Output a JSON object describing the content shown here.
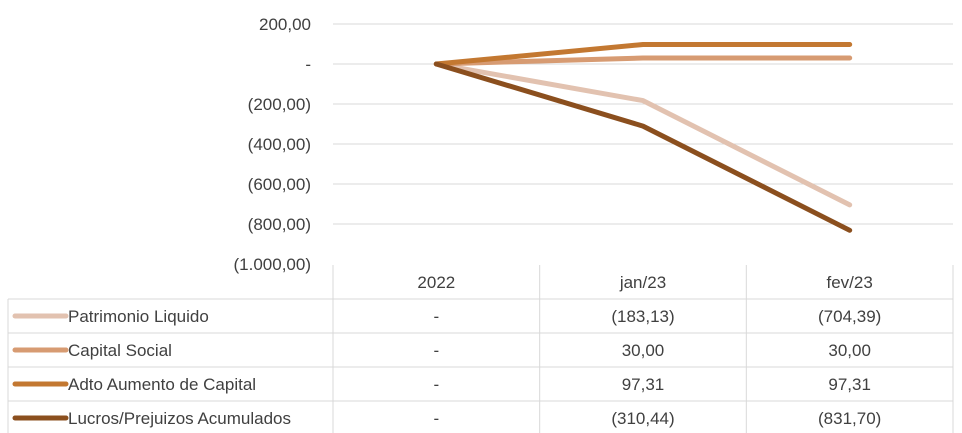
{
  "chart_data": {
    "type": "line",
    "title": "",
    "xlabel": "",
    "ylabel": "",
    "ylim": [
      -1000,
      200
    ],
    "y_ticks": [
      {
        "value": 200,
        "label": "200,00"
      },
      {
        "value": 0,
        "label": "-"
      },
      {
        "value": -200,
        "label": "(200,00)"
      },
      {
        "value": -400,
        "label": "(400,00)"
      },
      {
        "value": -600,
        "label": "(600,00)"
      },
      {
        "value": -800,
        "label": "(800,00)"
      },
      {
        "value": -1000,
        "label": "(1.000,00)"
      }
    ],
    "grid": true,
    "legend": "data-table",
    "categories": [
      "2022",
      "jan/23",
      "fev/23"
    ],
    "series": [
      {
        "name": "Patrimonio Liquido",
        "color": "#e2c2b0",
        "values": [
          0,
          -183.13,
          -704.39
        ],
        "display": [
          "-",
          "(183,13)",
          "(704,39)"
        ]
      },
      {
        "name": "Capital Social",
        "color": "#d79b72",
        "values": [
          0,
          30.0,
          30.0
        ],
        "display": [
          "-",
          "30,00",
          "30,00"
        ]
      },
      {
        "name": "Adto Aumento de Capital",
        "color": "#c37831",
        "values": [
          0,
          97.31,
          97.31
        ],
        "display": [
          "-",
          "97,31",
          "97,31"
        ]
      },
      {
        "name": "Lucros/Prejuizos Acumulados",
        "color": "#8b4f1e",
        "values": [
          0,
          -310.44,
          -831.7
        ],
        "display": [
          "-",
          "(310,44)",
          "(831,70)"
        ]
      }
    ]
  }
}
